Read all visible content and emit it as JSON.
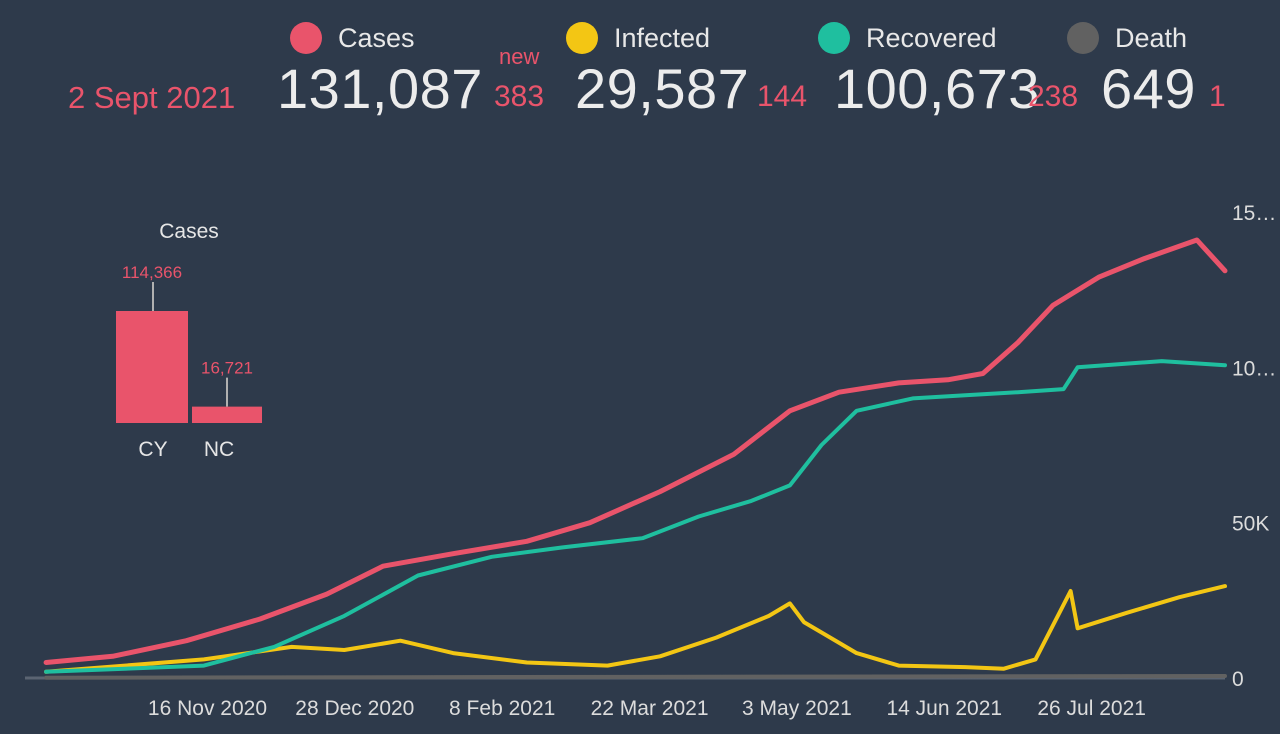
{
  "header": {
    "date": "2 Sept 2021",
    "new_label": "new",
    "accent": "#e9546b",
    "stats": [
      {
        "label": "Cases",
        "value": "131,087",
        "delta": "383",
        "color": "#e9546b"
      },
      {
        "label": "Infected",
        "value": "29,587",
        "delta": "144",
        "color": "#f3c614"
      },
      {
        "label": "Recovered",
        "value": "100,673",
        "delta": "238",
        "color": "#1fbf9f"
      },
      {
        "label": "Death",
        "value": "649",
        "delta": "1",
        "color": "#616161"
      }
    ]
  },
  "chart_data": [
    {
      "type": "line",
      "x_tick_labels": [
        "16 Nov 2020",
        "28 Dec 2020",
        "8 Feb 2021",
        "22 Mar 2021",
        "3 May 2021",
        "14 Jun 2021",
        "26 Jul 2021"
      ],
      "y_tick_labels": [
        "0",
        "50K",
        "10…",
        "15…"
      ],
      "ylim": [
        0,
        150000
      ],
      "grid": false,
      "series": [
        {
          "name": "Cases",
          "color": "#e9546b",
          "x": [
            "2020-10-01",
            "2020-10-20",
            "2020-11-10",
            "2020-12-01",
            "2020-12-20",
            "2021-01-05",
            "2021-01-25",
            "2021-02-15",
            "2021-03-05",
            "2021-03-25",
            "2021-04-15",
            "2021-05-01",
            "2021-05-15",
            "2021-06-01",
            "2021-06-15",
            "2021-06-25",
            "2021-07-05",
            "2021-07-15",
            "2021-07-28",
            "2021-08-10",
            "2021-08-25",
            "2021-09-02"
          ],
          "values": [
            5000,
            7000,
            12000,
            19000,
            27000,
            36000,
            40000,
            44000,
            50000,
            60000,
            72000,
            86000,
            92000,
            95000,
            96000,
            98000,
            108000,
            120000,
            129000,
            135000,
            141000,
            131087
          ]
        },
        {
          "name": "Recovered",
          "color": "#1fbf9f",
          "x": [
            "2020-10-01",
            "2020-11-15",
            "2020-12-05",
            "2020-12-25",
            "2021-01-15",
            "2021-02-05",
            "2021-02-25",
            "2021-03-20",
            "2021-04-05",
            "2021-04-20",
            "2021-05-01",
            "2021-05-10",
            "2021-05-20",
            "2021-06-05",
            "2021-06-20",
            "2021-07-05",
            "2021-07-18",
            "2021-07-22",
            "2021-08-15",
            "2021-09-02"
          ],
          "values": [
            2000,
            4000,
            10000,
            20000,
            33000,
            39000,
            42000,
            45000,
            52000,
            57000,
            62000,
            75000,
            86000,
            90000,
            91000,
            92000,
            93000,
            100000,
            102000,
            100673
          ]
        },
        {
          "name": "Infected",
          "color": "#f3c614",
          "x": [
            "2020-10-01",
            "2020-11-15",
            "2020-12-10",
            "2020-12-25",
            "2021-01-10",
            "2021-01-25",
            "2021-02-15",
            "2021-03-10",
            "2021-03-25",
            "2021-04-10",
            "2021-04-25",
            "2021-05-01",
            "2021-05-05",
            "2021-05-20",
            "2021-06-01",
            "2021-06-20",
            "2021-07-01",
            "2021-07-10",
            "2021-07-20",
            "2021-07-22",
            "2021-08-05",
            "2021-08-20",
            "2021-09-02"
          ],
          "values": [
            2000,
            6000,
            10000,
            9000,
            12000,
            8000,
            5000,
            4000,
            7000,
            13000,
            20000,
            24000,
            18000,
            8000,
            4000,
            3500,
            3000,
            6000,
            28000,
            16000,
            21000,
            26000,
            29587
          ]
        },
        {
          "name": "Death",
          "color": "#616161",
          "x": [
            "2020-10-01",
            "2021-09-02"
          ],
          "values": [
            100,
            649
          ]
        }
      ]
    },
    {
      "type": "bar",
      "title": "Cases",
      "categories": [
        "CY",
        "NC"
      ],
      "values": [
        114366,
        16721
      ],
      "value_labels": [
        "114,366",
        "16,721"
      ],
      "color": "#e9546b"
    }
  ]
}
